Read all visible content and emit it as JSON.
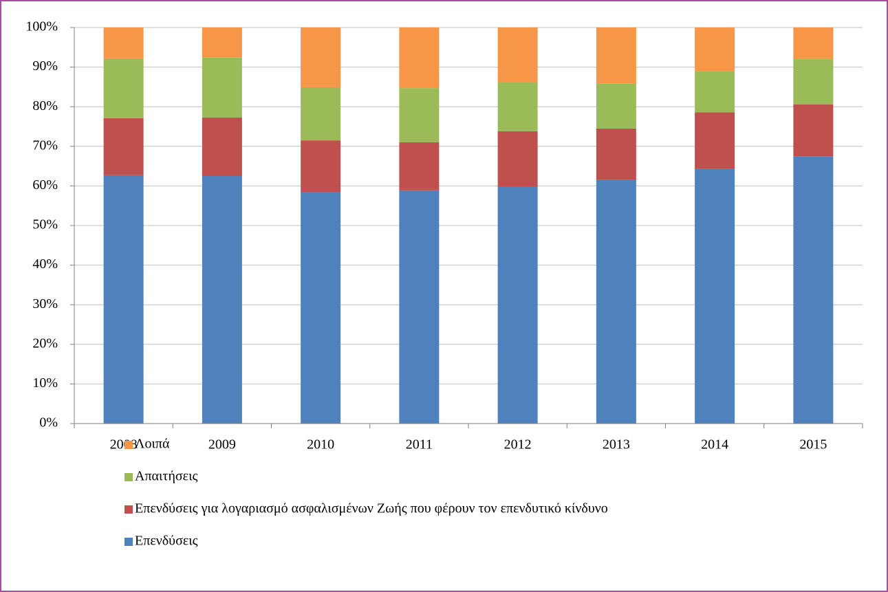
{
  "chart_data": {
    "type": "stacked_bar",
    "categories": [
      "2008",
      "2009",
      "2010",
      "2011",
      "2012",
      "2013",
      "2014",
      "2015"
    ],
    "series": [
      {
        "name": "Επενδύσεις",
        "color": "#4f81bd",
        "values": [
          62.7,
          62.5,
          58.5,
          58.9,
          59.9,
          61.5,
          64.4,
          67.4
        ]
      },
      {
        "name": "Επενδύσεις για λογαριασμό ασφαλισμένων Ζωής που φέρουν τον επενδυτικό κίνδυνο",
        "color": "#c0504d",
        "values": [
          14.4,
          14.8,
          13.0,
          12.1,
          13.9,
          13.0,
          14.2,
          13.2
        ]
      },
      {
        "name": "Απαιτήσεις",
        "color": "#9bbb59",
        "values": [
          15.1,
          15.1,
          13.4,
          13.7,
          12.3,
          11.3,
          10.3,
          11.4
        ]
      },
      {
        "name": "Λοιπά",
        "color": "#f79646",
        "values": [
          7.8,
          7.6,
          15.1,
          15.3,
          13.9,
          14.2,
          11.1,
          8.0
        ]
      }
    ],
    "ylim": [
      0,
      100
    ],
    "yticks": [
      {
        "value": 0,
        "label": "0%"
      },
      {
        "value": 10,
        "label": "10%"
      },
      {
        "value": 20,
        "label": "20%"
      },
      {
        "value": 30,
        "label": "30%"
      },
      {
        "value": 40,
        "label": "40%"
      },
      {
        "value": 50,
        "label": "50%"
      },
      {
        "value": 60,
        "label": "60%"
      },
      {
        "value": 70,
        "label": "70%"
      },
      {
        "value": 80,
        "label": "80%"
      },
      {
        "value": 90,
        "label": "90%"
      },
      {
        "value": 100,
        "label": "100%"
      }
    ],
    "grid": true
  }
}
